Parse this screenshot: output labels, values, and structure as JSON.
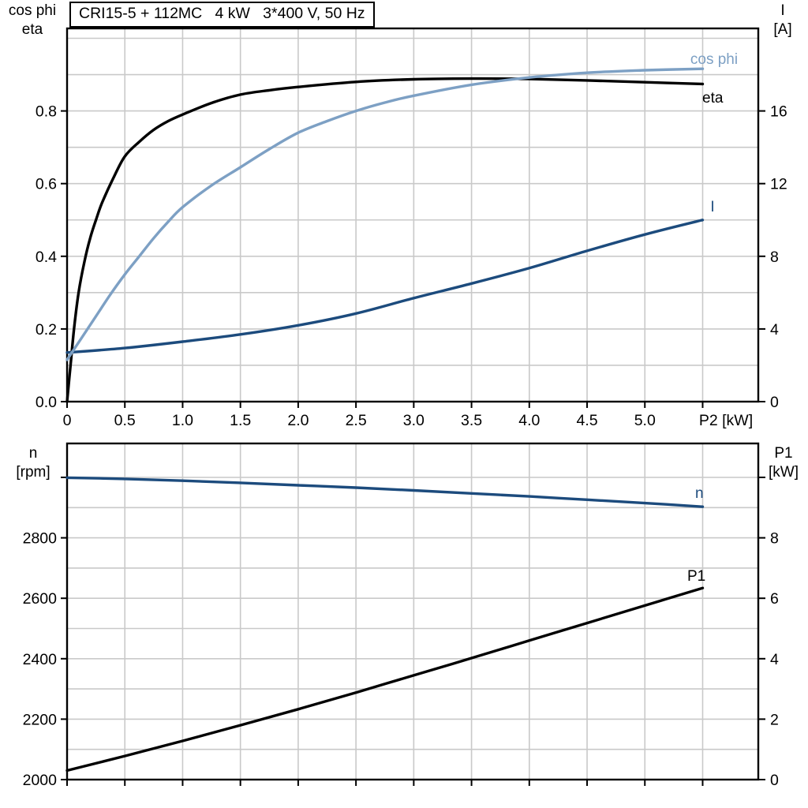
{
  "grid_color": "#c9c9c9",
  "frame_color": "#000000",
  "chart_data": [
    {
      "type": "line",
      "title": "CRI15-5 + 112MC   4 kW   3*400 V, 50 Hz",
      "x_axis": {
        "unit_label": "P2 [kW]",
        "min": 0,
        "max": 5.97,
        "tick_values": [
          0,
          0.5,
          1.0,
          1.5,
          2.0,
          2.5,
          3.0,
          3.5,
          4.0,
          4.5,
          5.0,
          5.5
        ],
        "tick_labels": [
          "0",
          "0.5",
          "1.0",
          "1.5",
          "2.0",
          "2.5",
          "3.0",
          "3.5",
          "4.0",
          "4.5",
          "5.0",
          ""
        ]
      },
      "y_left": {
        "label_lines": [
          "cos phi",
          "eta"
        ],
        "min": 0,
        "max": 1.03,
        "minor_grid_step": 0.1,
        "tick_values": [
          0,
          0.2,
          0.4,
          0.6,
          0.8
        ],
        "tick_labels": [
          "0.0",
          "0.2",
          "0.4",
          "0.6",
          "0.8"
        ]
      },
      "y_right": {
        "label_lines": [
          "I",
          "[A]"
        ],
        "min": 0,
        "max": 20.6,
        "minor_grid_step": 2,
        "tick_values": [
          0,
          4,
          8,
          12,
          16
        ],
        "tick_labels": [
          "0",
          "4",
          "8",
          "12",
          "16"
        ]
      },
      "series": [
        {
          "name": "eta",
          "axis": "left",
          "color": "#000000",
          "x": [
            0,
            0.03,
            0.06,
            0.1,
            0.15,
            0.2,
            0.25,
            0.3,
            0.4,
            0.5,
            0.625,
            0.75,
            0.875,
            1.0,
            1.25,
            1.5,
            1.75,
            2.0,
            2.5,
            3.0,
            3.5,
            4.0,
            4.5,
            5.0,
            5.5
          ],
          "values": [
            0,
            0.1,
            0.2,
            0.3,
            0.385,
            0.45,
            0.5,
            0.545,
            0.615,
            0.675,
            0.715,
            0.748,
            0.772,
            0.79,
            0.822,
            0.845,
            0.857,
            0.866,
            0.88,
            0.887,
            0.889,
            0.888,
            0.884,
            0.879,
            0.874
          ]
        },
        {
          "name": "I",
          "axis": "right",
          "color": "#1c4b7d",
          "x": [
            0,
            0.5,
            1.0,
            1.5,
            2.0,
            2.5,
            3.0,
            3.5,
            4.0,
            4.5,
            5.0,
            5.5
          ],
          "values": [
            2.7,
            2.95,
            3.3,
            3.7,
            4.2,
            4.85,
            5.7,
            6.5,
            7.35,
            8.3,
            9.2,
            10.0
          ]
        },
        {
          "name": "cos phi",
          "axis": "left",
          "color": "#7da0c4",
          "x": [
            0,
            0.125,
            0.25,
            0.375,
            0.5,
            0.625,
            0.75,
            0.875,
            1.0,
            1.25,
            1.5,
            1.75,
            2.0,
            2.25,
            2.5,
            2.75,
            3.0,
            3.5,
            4.0,
            4.5,
            5.0,
            5.5
          ],
          "values": [
            0.115,
            0.175,
            0.235,
            0.295,
            0.35,
            0.4,
            0.45,
            0.495,
            0.535,
            0.595,
            0.645,
            0.695,
            0.74,
            0.772,
            0.8,
            0.823,
            0.842,
            0.872,
            0.892,
            0.905,
            0.912,
            0.916
          ]
        }
      ]
    },
    {
      "type": "line",
      "x_axis": {
        "unit_label": "",
        "min": 0,
        "max": 5.97,
        "tick_values": [
          0,
          0.5,
          1.0,
          1.5,
          2.0,
          2.5,
          3.0,
          3.5,
          4.0,
          4.5,
          5.0,
          5.5
        ],
        "tick_labels": [
          "",
          "",
          "",
          "",
          "",
          "",
          "",
          "",
          "",
          "",
          "",
          ""
        ]
      },
      "y_left": {
        "label_lines": [
          "n",
          "[rpm]"
        ],
        "min": 2000,
        "max": 3113,
        "minor_grid_step": 100,
        "tick_values": [
          2000,
          2200,
          2400,
          2600,
          2800,
          3000
        ],
        "tick_labels": [
          "2000",
          "2200",
          "2400",
          "2600",
          "2800",
          ""
        ]
      },
      "y_right": {
        "label_lines": [
          "P1",
          "[kW]"
        ],
        "min": 0,
        "max": 11.1,
        "minor_grid_step": 1,
        "tick_values": [
          0,
          2,
          4,
          6,
          8,
          10
        ],
        "tick_labels": [
          "0",
          "2",
          "4",
          "6",
          "8",
          ""
        ]
      },
      "series": [
        {
          "name": "n",
          "axis": "left",
          "color": "#1c4b7d",
          "x": [
            0,
            0.5,
            1.0,
            1.5,
            2.0,
            2.5,
            3.0,
            3.5,
            4.0,
            4.5,
            5.0,
            5.5
          ],
          "values": [
            2999,
            2995,
            2989,
            2982,
            2974,
            2966,
            2957,
            2947,
            2937,
            2926,
            2915,
            2903
          ]
        },
        {
          "name": "P1",
          "axis": "right",
          "color": "#000000",
          "x": [
            0,
            0.5,
            1.0,
            1.5,
            2.0,
            2.5,
            3.0,
            3.5,
            4.0,
            4.5,
            5.0,
            5.5
          ],
          "values": [
            0.3,
            0.78,
            1.28,
            1.8,
            2.33,
            2.88,
            3.45,
            4.02,
            4.6,
            5.18,
            5.76,
            6.34
          ]
        }
      ]
    }
  ]
}
